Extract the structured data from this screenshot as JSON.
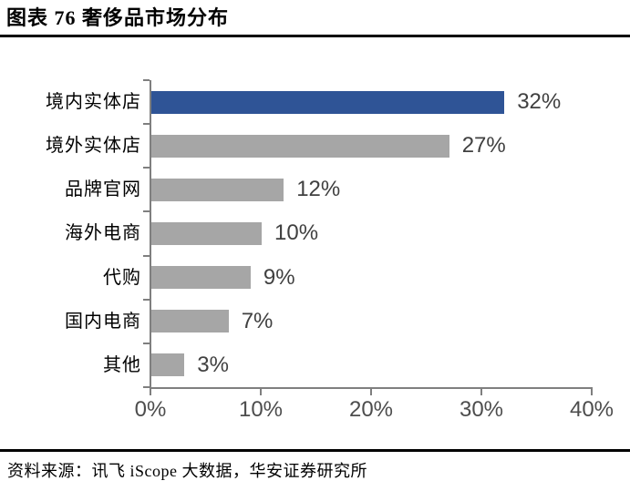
{
  "figure": {
    "title": "图表 76  奢侈品市场分布",
    "source": "资料来源：讯飞 iScope 大数据，华安证券研究所"
  },
  "chart_data": {
    "type": "bar",
    "orientation": "horizontal",
    "title": "奢侈品市场分布",
    "categories": [
      "境内实体店",
      "境外实体店",
      "品牌官网",
      "海外电商",
      "代购",
      "国内电商",
      "其他"
    ],
    "values": [
      32,
      27,
      12,
      10,
      9,
      7,
      3
    ],
    "value_labels": [
      "32%",
      "27%",
      "12%",
      "10%",
      "9%",
      "7%",
      "3%"
    ],
    "x_ticks": [
      0,
      10,
      20,
      30,
      40
    ],
    "x_tick_labels": [
      "0%",
      "10%",
      "20%",
      "30%",
      "40%"
    ],
    "xlim": [
      0,
      40
    ],
    "xlabel": "",
    "ylabel": "",
    "grid": false,
    "legend": false,
    "colors": {
      "highlight_bar": "#2F5496",
      "default_bar": "#A6A6A6",
      "bar_colors": [
        "#2F5496",
        "#A6A6A6",
        "#A6A6A6",
        "#A6A6A6",
        "#A6A6A6",
        "#A6A6A6",
        "#A6A6A6"
      ],
      "axis": "#7F7F7F",
      "value_text": "#404040",
      "tick_text": "#4D4D4D"
    }
  }
}
